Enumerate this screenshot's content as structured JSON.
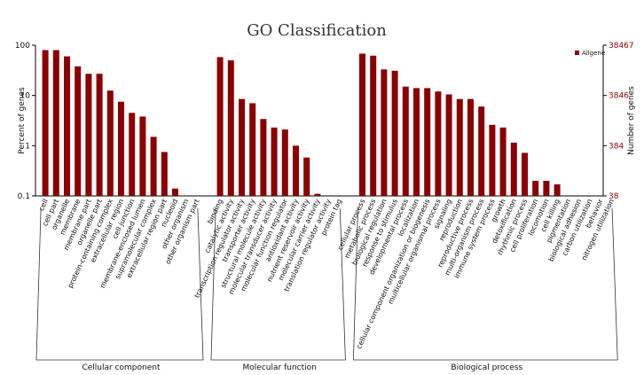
{
  "chart_data": {
    "type": "bar",
    "title": "GO Classification",
    "ylabel": "Percent of genes",
    "ylabel_right": "Number of genes",
    "yscale": "log",
    "ylim": [
      0.1,
      100
    ],
    "y_ticks": [
      "100",
      "10",
      "1",
      "0.1"
    ],
    "y_right_ticks": [
      "38467",
      "3846",
      "384",
      "38"
    ],
    "legend": "Allgene",
    "legend_position": "top-right",
    "bar_color": "#8b0000",
    "groups": [
      {
        "name": "Cellular component",
        "categories": [
          "cell",
          "cell part",
          "organelle",
          "membrane",
          "membrane part",
          "organelle part",
          "protein-containing complex",
          "extracellular region",
          "cell junction",
          "membrane-enclosed lumen",
          "supramolecular complex",
          "extracellular region part",
          "nucleoid",
          "other organism",
          "other organism part"
        ],
        "values": [
          80,
          80,
          60,
          38,
          27,
          27,
          12.5,
          7.5,
          4.5,
          3.8,
          1.5,
          0.75,
          0.14,
          0,
          0
        ]
      },
      {
        "name": "Molecular function",
        "categories": [
          "binding",
          "catalytic activity",
          "transcription regulator activity",
          "transporter activity",
          "structural molecule activity",
          "molecular transducer activity",
          "molecular function regulator",
          "antioxidant activity",
          "nutrient reservoir activity",
          "molecular carrier activity",
          "translation regulator activity",
          "protein tag"
        ],
        "values": [
          58,
          50,
          8.5,
          7,
          3.4,
          2.3,
          2.1,
          1.0,
          0.58,
          0.11,
          0,
          0
        ]
      },
      {
        "name": "Biological process",
        "categories": [
          "cellular process",
          "metabolic process",
          "biological regulation",
          "response to stimulus",
          "developmental process",
          "localization",
          "cellular component organization or biogenesis",
          "multicellular organismal process",
          "signaling",
          "reproduction",
          "reproductive process",
          "multi-organism process",
          "immune system process",
          "growth",
          "detoxification",
          "rhythmic process",
          "cell proliferation",
          "locomotion",
          "cell killing",
          "pigmentation",
          "biological adhesion",
          "carbon utilization",
          "behavior",
          "nitrogen utilization"
        ],
        "values": [
          68,
          62,
          33,
          31,
          15,
          14,
          14,
          12,
          10.5,
          8.5,
          8.5,
          6,
          2.6,
          2.3,
          1.15,
          0.72,
          0.2,
          0.2,
          0.17,
          0,
          0,
          0,
          0,
          0
        ]
      }
    ]
  }
}
